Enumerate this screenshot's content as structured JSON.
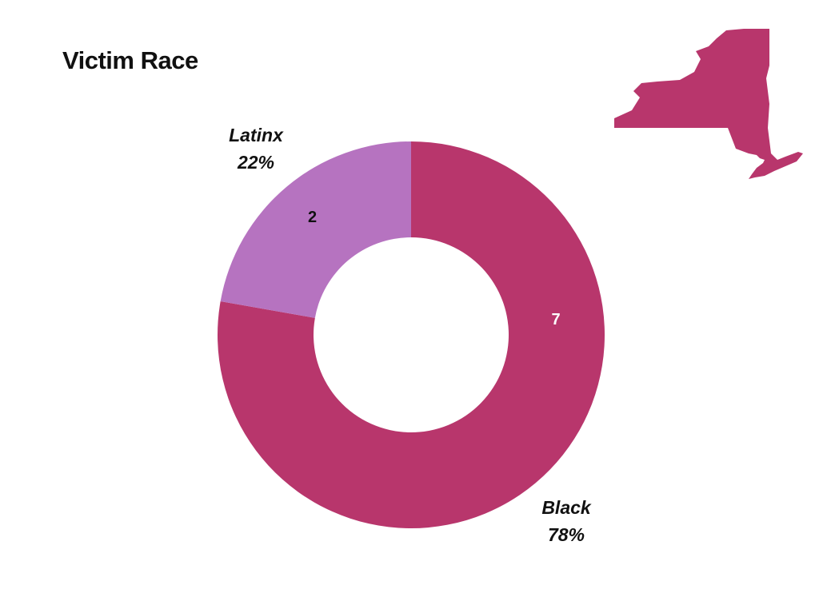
{
  "header": {
    "title": "Victim Race"
  },
  "map_icon": "new-york-state-map-icon",
  "colors": {
    "black": "#B8366C",
    "latinx": "#B673C0",
    "title": "#111111"
  },
  "chart_data": {
    "type": "pie",
    "variant": "donut",
    "title": "Victim Race",
    "slices": [
      {
        "label": "Black",
        "value": 7,
        "percent": "78%",
        "color": "#B8366C",
        "value_label_color": "#ffffff"
      },
      {
        "label": "Latinx",
        "value": 2,
        "percent": "22%",
        "color": "#B673C0",
        "value_label_color": "#111111"
      }
    ],
    "start_angle_deg": 0,
    "direction": "clockwise"
  }
}
